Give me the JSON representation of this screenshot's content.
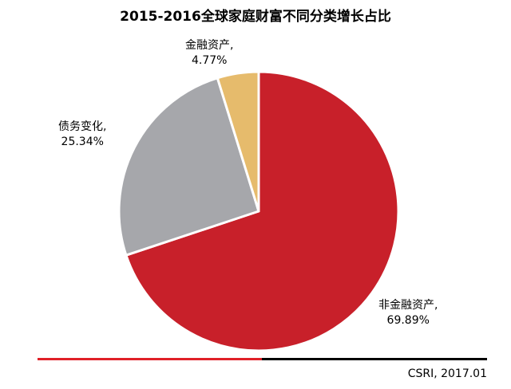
{
  "chart_data": {
    "type": "pie",
    "title": "2015-2016全球家庭财富不同分类增长占比",
    "slices": [
      {
        "name": "非金融资产,",
        "percent_label": "69.89%",
        "value": 69.89,
        "color": "#c8202a"
      },
      {
        "name": "债务变化,",
        "percent_label": "25.34%",
        "value": 25.34,
        "color": "#a6a7ab"
      },
      {
        "name": "金融资产,",
        "percent_label": "4.77%",
        "value": 4.77,
        "color": "#e6bb6c"
      }
    ],
    "start": "12 o'clock",
    "direction": "clockwise"
  },
  "footer": {
    "source": "CSRI, 2017.01",
    "rule_colors": [
      "#e02028",
      "#000000"
    ]
  }
}
